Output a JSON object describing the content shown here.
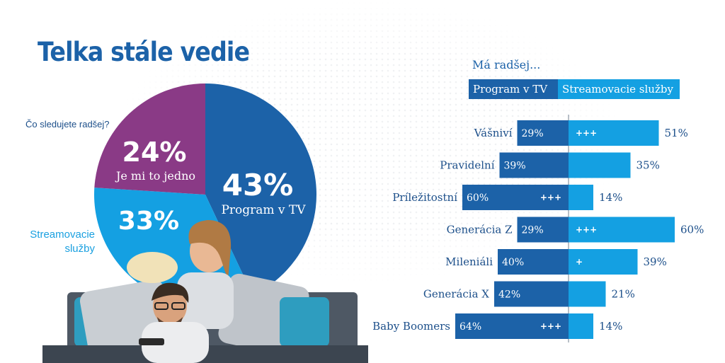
{
  "title": "Telka stále vedie",
  "question": "Čo sledujete radšej?",
  "colors": {
    "tv": "#1c62a8",
    "streaming": "#14a0e2",
    "indifferent": "#8a3a86",
    "text": "#1c4f8a"
  },
  "chart_data": [
    {
      "type": "pie",
      "title": "Čo sledujete radšej?",
      "slices": [
        {
          "label": "Program v TV",
          "value": 43,
          "display": "43%"
        },
        {
          "label": "Streamovacie služby",
          "value": 33,
          "display": "33%"
        },
        {
          "label": "Je mi to jedno",
          "value": 24,
          "display": "24%"
        }
      ],
      "external_label": "Streamovacie služby"
    },
    {
      "type": "bar",
      "title": "Má radšej...",
      "orientation": "diverging-horizontal",
      "series": [
        {
          "name": "Program v TV",
          "values": [
            29,
            39,
            60,
            29,
            40,
            42,
            64
          ]
        },
        {
          "name": "Streamovacie služby",
          "values": [
            51,
            35,
            14,
            60,
            39,
            21,
            14
          ]
        }
      ],
      "categories": [
        "Vášniví",
        "Pravidelní",
        "Príležitostní",
        "Generácia Z",
        "Mileniáli",
        "Generácia X",
        "Baby Boomers"
      ],
      "labels_tv": [
        "29%",
        "39%",
        "60%",
        "29%",
        "40%",
        "42%",
        "64%"
      ],
      "labels_streaming": [
        "51%",
        "35%",
        "14%",
        "60%",
        "39%",
        "21%",
        "14%"
      ],
      "significance_tv": [
        "",
        "",
        "+++",
        "",
        "",
        "",
        "+++"
      ],
      "significance_streaming": [
        "+++",
        "",
        "",
        "+++",
        "+",
        "",
        ""
      ]
    }
  ]
}
